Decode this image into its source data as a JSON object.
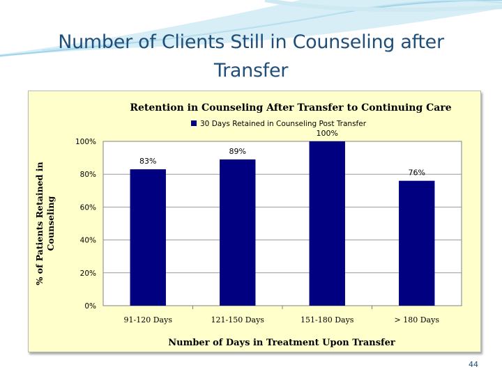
{
  "slide": {
    "title": "Number of Clients Still in Counseling   after Transfer",
    "page_number": "44"
  },
  "colors": {
    "title": "#1f4e79",
    "chart_background": "#ffffcc",
    "bar": "#000080",
    "decor_wave": "#9fd4e8"
  },
  "chart_data": {
    "type": "bar",
    "title": "Retention in Counseling After Transfer to Continuing Care",
    "xlabel": "Number of Days in Treatment Upon Transfer",
    "ylabel": "% of Patients Retained in Counseling",
    "ylabel_lines": [
      "% of Patients Retained in",
      "Counseling"
    ],
    "categories": [
      "91-120 Days",
      "121-150 Days",
      "151-180 Days",
      "> 180 Days"
    ],
    "series": [
      {
        "name": "30 Days Retained in Counseling Post Transfer",
        "values": [
          83,
          89,
          100,
          76
        ]
      }
    ],
    "data_labels": [
      "83%",
      "89%",
      "100%",
      "76%"
    ],
    "yticks": [
      "0%",
      "20%",
      "40%",
      "60%",
      "80%",
      "100%"
    ],
    "ylim": [
      0,
      100
    ],
    "grid": true,
    "legend_position": "top"
  }
}
